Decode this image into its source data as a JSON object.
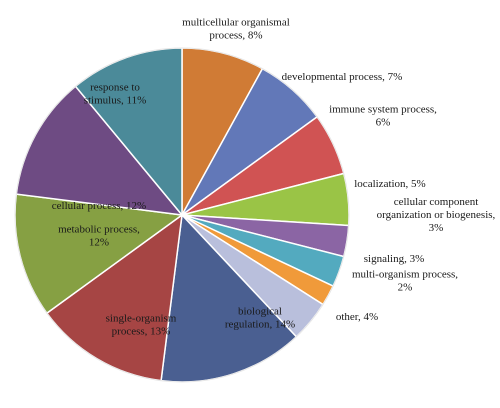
{
  "chart_data": {
    "type": "pie",
    "title": "",
    "unit": "%",
    "slices": [
      {
        "label": "multicellular organismal process, 8%",
        "lines": [
          "multicellular organismal",
          "process, 8%"
        ],
        "value": 8,
        "color": "#d07b35"
      },
      {
        "label": "developmental process, 7%",
        "lines": [
          "developmental process, 7%"
        ],
        "value": 7,
        "color": "#6278b8"
      },
      {
        "label": "immune system process, 6%",
        "lines": [
          "immune system process,",
          "6%"
        ],
        "value": 6,
        "color": "#d05353"
      },
      {
        "label": "localization, 5%",
        "lines": [
          "localization, 5%"
        ],
        "value": 5,
        "color": "#9ac446"
      },
      {
        "label": "cellular component organization or biogenesis, 3%",
        "lines": [
          "cellular component",
          "organization or biogenesis,",
          "3%"
        ],
        "value": 3,
        "color": "#8b65a4"
      },
      {
        "label": "signaling, 3%",
        "lines": [
          "signaling, 3%"
        ],
        "value": 3,
        "color": "#53aabf"
      },
      {
        "label": "multi-organism process, 2%",
        "lines": [
          "multi-organism process,",
          "2%"
        ],
        "value": 2,
        "color": "#f09a3a"
      },
      {
        "label": "other, 4%",
        "lines": [
          "other, 4%"
        ],
        "value": 4,
        "color": "#b9bfdc"
      },
      {
        "label": "biological regulation, 14%",
        "lines": [
          "biological",
          "regulation, 14%"
        ],
        "value": 14,
        "color": "#4a5f91"
      },
      {
        "label": "single-organism process, 13%",
        "lines": [
          "single-organism",
          "process, 13%"
        ],
        "value": 13,
        "color": "#a64544"
      },
      {
        "label": "metabolic process, 12%",
        "lines": [
          "metabolic process,",
          "12%"
        ],
        "value": 12,
        "color": "#86a043"
      },
      {
        "label": "cellular process, 12%",
        "lines": [
          "cellular process, 12%"
        ],
        "value": 12,
        "color": "#6e4b83"
      },
      {
        "label": "response to stimulus, 11%",
        "lines": [
          "response to",
          "stimulus, 11%"
        ],
        "value": 11,
        "color": "#4b8a99"
      }
    ]
  }
}
